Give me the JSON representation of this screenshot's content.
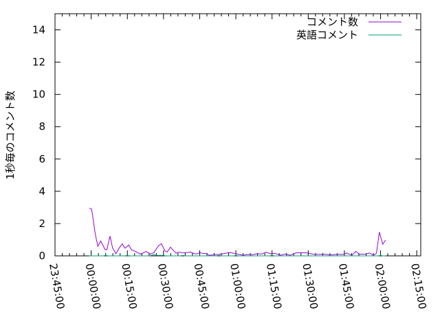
{
  "chart_data": {
    "type": "line",
    "title": "",
    "xlabel": "",
    "ylabel": "1秒毎のコメント数",
    "xlim": [
      "23:45:00",
      "02:16:40"
    ],
    "ylim": [
      0,
      15
    ],
    "x_ticks": [
      "23:45:00",
      "00:00:00",
      "00:15:00",
      "00:30:00",
      "00:45:00",
      "01:00:00",
      "01:15:00",
      "01:30:00",
      "01:45:00",
      "02:00:00",
      "02:15:00"
    ],
    "y_ticks": [
      "0",
      "2",
      "4",
      "6",
      "8",
      "10",
      "12",
      "14"
    ],
    "grid": false,
    "legend_position": "top-right",
    "series": [
      {
        "name": "コメント数",
        "color": "#9400d3",
        "x": [
          "23:59:12",
          "00:00:12",
          "00:01:00",
          "00:01:30",
          "00:02:06",
          "00:02:48",
          "00:04:00",
          "00:05:42",
          "00:06:30",
          "00:07:48",
          "00:08:54",
          "00:10:18",
          "00:11:36",
          "00:12:54",
          "00:14:00",
          "00:15:36",
          "00:16:42",
          "00:18:54",
          "00:20:18",
          "00:21:24",
          "00:22:48",
          "00:24:36",
          "00:26:00",
          "00:27:54",
          "00:29:06",
          "00:30:36",
          "00:31:30",
          "00:32:54",
          "00:34:12",
          "00:35:18",
          "00:36:30",
          "00:37:54",
          "00:39:48",
          "00:41:12",
          "00:42:12",
          "00:43:36",
          "00:45:00",
          "00:46:00",
          "00:47:54",
          "00:48:48",
          "00:50:42",
          "00:53:36",
          "00:55:30",
          "00:57:24",
          "00:59:18",
          "01:01:12",
          "01:03:00",
          "01:05:00",
          "01:06:54",
          "01:08:48",
          "01:10:42",
          "01:12:24",
          "01:14:24",
          "01:16:12",
          "01:18:18",
          "01:20:36",
          "01:22:30",
          "01:24:54",
          "01:27:18",
          "01:29:30",
          "01:32:00",
          "01:34:24",
          "01:36:48",
          "01:39:06",
          "01:42:00",
          "01:44:36",
          "01:46:00",
          "01:48:06",
          "01:49:42",
          "01:51:18",
          "01:53:54",
          "01:55:24",
          "01:57:06",
          "01:58:18",
          "01:59:30",
          "02:00:54",
          "02:02:06"
        ],
        "values": [
          2.96,
          2.9,
          2.1,
          1.54,
          1.05,
          0.6,
          0.92,
          0.41,
          0.38,
          1.23,
          0.48,
          0.13,
          0.48,
          0.75,
          0.47,
          0.67,
          0.38,
          0.24,
          0.11,
          0.17,
          0.27,
          0.11,
          0.2,
          0.62,
          0.75,
          0.3,
          0.24,
          0.54,
          0.31,
          0.16,
          0.24,
          0.18,
          0.2,
          0.24,
          0.17,
          0.11,
          0.2,
          0.16,
          0.14,
          0.04,
          0.06,
          0.1,
          0.16,
          0.2,
          0.16,
          0.09,
          0.04,
          0.09,
          0.07,
          0.13,
          0.11,
          0.23,
          0.13,
          0.16,
          0.04,
          0.11,
          0.04,
          0.18,
          0.2,
          0.18,
          0.1,
          0.09,
          0.1,
          0.06,
          0.09,
          0.09,
          0.18,
          0.03,
          0.28,
          0.1,
          0.11,
          0.18,
          0.03,
          0.17,
          1.47,
          0.72,
          0.98
        ]
      },
      {
        "name": "英語コメント",
        "color": "#009e73",
        "x": [
          "23:59:12",
          "00:05:00",
          "00:06:00",
          "00:07:00",
          "00:14:00",
          "00:15:00",
          "00:16:00",
          "00:24:00",
          "00:25:00",
          "00:26:00",
          "00:27:00",
          "00:28:00",
          "00:29:00",
          "00:30:00",
          "00:31:00",
          "00:37:00",
          "00:38:00",
          "00:39:00",
          "00:52:00",
          "00:53:00",
          "00:54:00",
          "00:59:00",
          "01:00:00",
          "01:01:00",
          "01:14:00",
          "01:15:00",
          "01:16:00",
          "01:59:00",
          "02:00:00",
          "02:01:00",
          "02:02:06"
        ],
        "values": [
          0,
          0,
          0.03,
          0,
          0,
          0.03,
          0,
          0,
          0.03,
          0.08,
          0.03,
          0.03,
          0.03,
          0.03,
          0,
          0,
          0.03,
          0,
          0,
          0.03,
          0,
          0,
          0.03,
          0,
          0,
          0.03,
          0,
          0,
          0.03,
          0,
          0
        ]
      }
    ]
  }
}
